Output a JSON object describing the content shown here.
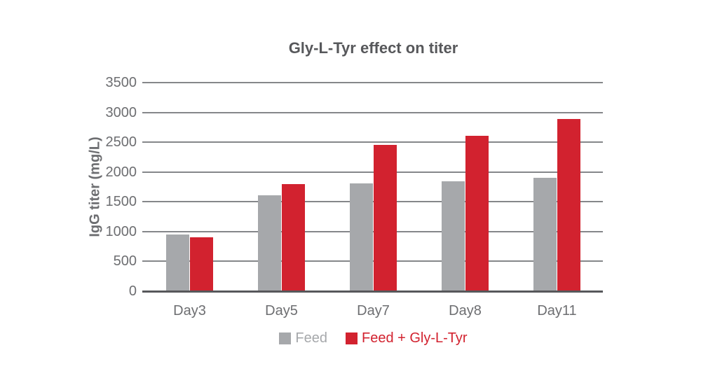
{
  "page": {
    "background_color": "#ffffff"
  },
  "chart_data": {
    "type": "bar",
    "title": "Gly-L-Tyr effect on titer",
    "xlabel": "",
    "ylabel": "IgG titer (mg/L)",
    "categories": [
      "Day3",
      "Day5",
      "Day7",
      "Day8",
      "Day11"
    ],
    "series": [
      {
        "name": "Feed",
        "color": "#a6a8ab",
        "values": [
          950,
          1610,
          1810,
          1840,
          1900
        ]
      },
      {
        "name": "Feed + Gly-L-Tyr",
        "color": "#d2222f",
        "values": [
          910,
          1800,
          2460,
          2610,
          2890
        ]
      }
    ],
    "ylim": [
      0,
      3500
    ],
    "ytick_step": 500,
    "ytick_labels": [
      "0",
      "500",
      "1000",
      "1500",
      "2000",
      "2500",
      "3000",
      "3500"
    ],
    "grid": "horizontal",
    "legend_position": "bottom",
    "colors": {
      "gridline": "#85878a",
      "axis_baseline": "#57585b",
      "title_text": "#57585b",
      "tick_text": "#6d6e71"
    }
  }
}
